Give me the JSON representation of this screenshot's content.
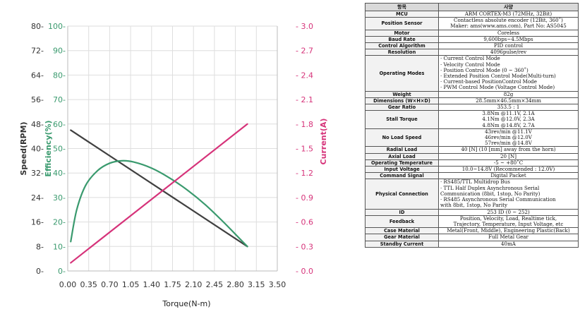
{
  "chart_data": {
    "type": "line",
    "xlabel": "Torque(N-m)",
    "x_ticks": [
      "0.00",
      "0.35",
      "0.70",
      "1.05",
      "1.40",
      "1.75",
      "2.10",
      "2.45",
      "2.80",
      "3.15",
      "3.50"
    ],
    "xlim": [
      0,
      3.5
    ],
    "axes": {
      "speed": {
        "label": "Speed(RPM)",
        "ticks": [
          "0",
          "8",
          "16",
          "24",
          "32",
          "40",
          "48",
          "56",
          "64",
          "72",
          "80"
        ],
        "range": [
          0,
          80
        ],
        "color": "#333333"
      },
      "efficiency": {
        "label": "Efficiency(%)",
        "ticks": [
          "0",
          "10",
          "20",
          "30",
          "40",
          "50",
          "60",
          "70",
          "80",
          "90",
          "100"
        ],
        "range": [
          0,
          100
        ],
        "color": "#3a9a6e"
      },
      "current": {
        "label": "Current(A)",
        "ticks": [
          "0.0",
          "0.3",
          "0.6",
          "0.9",
          "1.2",
          "1.5",
          "1.8",
          "2.1",
          "2.4",
          "2.7",
          "3.0"
        ],
        "range": [
          0,
          3.0
        ],
        "color": "#d6337a"
      }
    },
    "grid": true,
    "series": [
      {
        "axis": "speed",
        "color": "#404040",
        "x": [
          0.05,
          3.0
        ],
        "y": [
          46,
          8
        ]
      },
      {
        "axis": "efficiency",
        "color": "#3a9a6e",
        "x": [
          0.05,
          0.15,
          0.3,
          0.5,
          0.7,
          0.9,
          1.1,
          1.4,
          1.7,
          2.0,
          2.3,
          2.6,
          2.8,
          3.0
        ],
        "y": [
          12,
          25,
          35,
          41,
          44,
          45,
          44.5,
          42,
          38,
          33,
          27,
          20,
          15,
          10
        ]
      },
      {
        "axis": "current",
        "color": "#d6337a",
        "x": [
          0.05,
          3.0
        ],
        "y": [
          0.1,
          1.8
        ]
      }
    ]
  },
  "spec_table": {
    "header": {
      "item": "항목",
      "value": "사양"
    },
    "rows": [
      {
        "item": "MCU",
        "lines": [
          "ARM CORTEX-M3 (72MHz, 32Bit)"
        ]
      },
      {
        "item": "Position Sensor",
        "lines": [
          "Contactless absolute encoder (12Bit, 360˚)",
          "Maker: ams(www.ams.com), Part No: AS5045"
        ]
      },
      {
        "item": "Motor",
        "lines": [
          "Coreless"
        ]
      },
      {
        "item": "Baud Rate",
        "lines": [
          "9,600bps~4.5Mbps"
        ]
      },
      {
        "item": "Control Algorithm",
        "lines": [
          "PID control"
        ]
      },
      {
        "item": "Resolution",
        "lines": [
          "4096pulse/rev"
        ]
      },
      {
        "item": "Operating Modes",
        "align": "left",
        "lines": [
          "· Current Control Mode",
          "· Velocity Control Mode",
          "· Position Control Mode (0 ~ 360˚)",
          "· Extended Position Control Mode(Multi-turn)",
          "· Current-based PositionControl Mode",
          "· PWM Control Mode (Voltage Control Mode)"
        ]
      },
      {
        "item": "Weight",
        "lines": [
          "82g"
        ]
      },
      {
        "item": "Dimensions (W×H×D)",
        "lines": [
          "28.5mm×46.5mm×34mm"
        ]
      },
      {
        "item": "Gear Ratio",
        "lines": [
          "353.5 : 1"
        ]
      },
      {
        "item": "Stall Torque",
        "lines": [
          "3.8Nm @11.1V, 2.1A",
          "4.1Nm @12.0V, 2.3A",
          "4.8Nm @14.8V, 2.7A"
        ]
      },
      {
        "item": "No Load Speed",
        "lines": [
          "43rev/min @11.1V",
          "46rev/min @12.0V",
          "57rev/min @14.8V"
        ]
      },
      {
        "item": "Radial Load",
        "lines": [
          "40 [N] (10 [mm] away from the horn)"
        ]
      },
      {
        "item": "Axial Load",
        "lines": [
          "20 [N]"
        ]
      },
      {
        "item": "Operating Temperature",
        "lines": [
          "-5 ~ +80˚C"
        ]
      },
      {
        "item": "Input Voltage",
        "lines": [
          "10.0~14.8V (Recommended : 12.0V)"
        ]
      },
      {
        "item": "Command Signal",
        "lines": [
          "Digital Packet"
        ]
      },
      {
        "item": "Physical Connection",
        "align": "left",
        "lines": [
          "· RS485/TTL Multidrop Bus",
          "· TTL Half Duplex Asynchronous Serial",
          "  Communication (8bit, 1stop, No Parity)",
          "· RS485 Asynchronous Serial Communication",
          "  with 8bit, 1stop, No Parity"
        ]
      },
      {
        "item": "ID",
        "lines": [
          "253 ID (0 ~ 252)"
        ]
      },
      {
        "item": "Feedback",
        "lines": [
          "Position, Velocity, Load, Realtime tick,",
          "Trajectory, Temperature, Input Voltage, etc"
        ]
      },
      {
        "item": "Case Material",
        "lines": [
          "Metal(Front, Middle), Engineering Plastic(Back)"
        ]
      },
      {
        "item": "Gear Material",
        "lines": [
          "Full Metal Gear"
        ]
      },
      {
        "item": "Standby Current",
        "lines": [
          "40mA"
        ]
      }
    ]
  }
}
